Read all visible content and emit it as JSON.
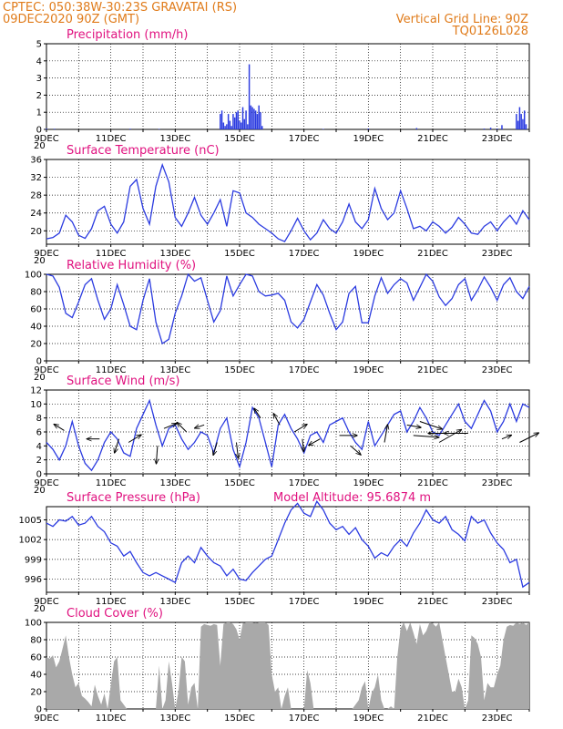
{
  "header": {
    "line1": "CPTEC:   050:38W-30:23S   GRAVATAI (RS)",
    "line2": "09DEC2020 90Z (GMT)",
    "right1": "Vertical Grid Line: 90Z",
    "right2": "TQ0126L028"
  },
  "colors": {
    "header": "#e07b1a",
    "title": "#e0117f",
    "line": "#2b3be0",
    "cloud": "#a9a9a9",
    "grid": "#000000"
  },
  "x_axis": {
    "ticks": [
      "9DEC",
      "11DEC",
      "13DEC",
      "15DEC",
      "17DEC",
      "19DEC",
      "21DEC",
      "23DEC"
    ],
    "day_start": 9,
    "day_end": 24,
    "tick_stub": "20"
  },
  "chart_data": [
    {
      "id": "precip",
      "type": "bar",
      "title": "Precipitation (mm/h)",
      "ylim": [
        0,
        5
      ],
      "yticks": [
        "0",
        "1",
        "2",
        "3",
        "4",
        "5"
      ],
      "units": "mm/h",
      "x": [
        9.0,
        9.25,
        11.6,
        12.5,
        14.4,
        14.45,
        14.5,
        14.55,
        14.6,
        14.65,
        14.7,
        14.75,
        14.8,
        14.85,
        14.9,
        14.95,
        15.0,
        15.05,
        15.1,
        15.15,
        15.2,
        15.25,
        15.3,
        15.35,
        15.4,
        15.45,
        15.5,
        15.55,
        15.6,
        15.65,
        15.7,
        17.6,
        19.0,
        20.5,
        22.6,
        22.8,
        23.0,
        23.15,
        23.6,
        23.65,
        23.7,
        23.75,
        23.8,
        23.85,
        23.9
      ],
      "values": [
        0.05,
        0.04,
        0.04,
        0.03,
        0.9,
        1.1,
        0.4,
        0.2,
        0.3,
        0.9,
        0.5,
        0.2,
        0.9,
        0.7,
        1.0,
        1.1,
        0.5,
        0.4,
        1.3,
        0.6,
        1.1,
        0.3,
        3.8,
        1.4,
        1.3,
        1.2,
        1.1,
        0.9,
        1.4,
        1.0,
        0.2,
        0.03,
        0.05,
        0.08,
        0.05,
        0.1,
        0.05,
        0.25,
        0.9,
        0.5,
        1.3,
        0.9,
        0.6,
        1.1,
        0.3
      ]
    },
    {
      "id": "temp",
      "type": "line",
      "title": "Surface Temperature (nC)",
      "ylim": [
        17,
        36
      ],
      "yticks": [
        "20",
        "24",
        "28",
        "32",
        "36"
      ],
      "x": [
        9.0,
        9.2,
        9.4,
        9.6,
        9.8,
        10.0,
        10.2,
        10.4,
        10.6,
        10.8,
        11.0,
        11.2,
        11.4,
        11.6,
        11.8,
        12.0,
        12.2,
        12.4,
        12.6,
        12.8,
        13.0,
        13.2,
        13.4,
        13.6,
        13.8,
        14.0,
        14.2,
        14.4,
        14.6,
        14.8,
        15.0,
        15.2,
        15.4,
        15.6,
        15.8,
        16.0,
        16.2,
        16.4,
        16.6,
        16.8,
        17.0,
        17.2,
        17.4,
        17.6,
        17.8,
        18.0,
        18.2,
        18.4,
        18.6,
        18.8,
        19.0,
        19.2,
        19.4,
        19.6,
        19.8,
        20.0,
        20.2,
        20.4,
        20.6,
        20.8,
        21.0,
        21.2,
        21.4,
        21.6,
        21.8,
        22.0,
        22.2,
        22.4,
        22.6,
        22.8,
        23.0,
        23.2,
        23.4,
        23.6,
        23.8,
        24.0
      ],
      "values": [
        18.2,
        18.5,
        19.5,
        23.5,
        22.0,
        19.0,
        18.3,
        20.5,
        24.5,
        25.5,
        21.5,
        19.5,
        22.0,
        30.0,
        31.5,
        25.0,
        21.5,
        30.0,
        34.8,
        31.0,
        23.0,
        21.0,
        24.0,
        27.5,
        23.5,
        21.5,
        24.0,
        27.0,
        21.0,
        29.0,
        28.5,
        24.0,
        23.0,
        21.5,
        20.5,
        19.5,
        18.2,
        17.6,
        20.0,
        22.8,
        20.0,
        18.0,
        19.5,
        22.5,
        20.5,
        19.5,
        22.0,
        26.0,
        22.0,
        20.5,
        22.5,
        29.5,
        25.0,
        22.5,
        24.0,
        29.0,
        25.0,
        20.5,
        21.0,
        20.0,
        22.0,
        21.0,
        19.5,
        20.8,
        23.0,
        21.5,
        19.5,
        19.2,
        21.0,
        22.0,
        20.0,
        22.0,
        23.5,
        21.5,
        24.5,
        22.5
      ]
    },
    {
      "id": "rh",
      "type": "line",
      "title": "Relative Humidity (%)",
      "ylim": [
        0,
        100
      ],
      "yticks": [
        "0",
        "20",
        "40",
        "60",
        "80",
        "100"
      ],
      "x": [
        9.0,
        9.2,
        9.4,
        9.6,
        9.8,
        10.0,
        10.2,
        10.4,
        10.6,
        10.8,
        11.0,
        11.2,
        11.4,
        11.6,
        11.8,
        12.0,
        12.2,
        12.4,
        12.6,
        12.8,
        13.0,
        13.2,
        13.4,
        13.6,
        13.8,
        14.0,
        14.2,
        14.4,
        14.6,
        14.8,
        15.0,
        15.2,
        15.4,
        15.6,
        15.8,
        16.0,
        16.2,
        16.4,
        16.6,
        16.8,
        17.0,
        17.2,
        17.4,
        17.6,
        17.8,
        18.0,
        18.2,
        18.4,
        18.6,
        18.8,
        19.0,
        19.2,
        19.4,
        19.6,
        19.8,
        20.0,
        20.2,
        20.4,
        20.6,
        20.8,
        21.0,
        21.2,
        21.4,
        21.6,
        21.8,
        22.0,
        22.2,
        22.4,
        22.6,
        22.8,
        23.0,
        23.2,
        23.4,
        23.6,
        23.8,
        24.0
      ],
      "values": [
        100,
        98,
        85,
        55,
        50,
        68,
        88,
        95,
        70,
        48,
        60,
        88,
        65,
        40,
        36,
        70,
        95,
        45,
        20,
        25,
        55,
        75,
        100,
        92,
        96,
        70,
        45,
        58,
        98,
        75,
        88,
        100,
        98,
        80,
        75,
        76,
        78,
        70,
        45,
        38,
        48,
        68,
        88,
        76,
        55,
        36,
        45,
        78,
        86,
        44,
        44,
        75,
        96,
        78,
        88,
        95,
        90,
        70,
        85,
        100,
        92,
        74,
        64,
        72,
        88,
        95,
        70,
        82,
        97,
        85,
        70,
        88,
        96,
        80,
        72,
        86
      ]
    },
    {
      "id": "wind",
      "type": "line",
      "title": "Surface Wind (m/s)",
      "ylim": [
        0,
        12
      ],
      "yticks": [
        "0",
        "2",
        "4",
        "6",
        "8",
        "10",
        "12"
      ],
      "x": [
        9.0,
        9.2,
        9.4,
        9.6,
        9.8,
        10.0,
        10.2,
        10.4,
        10.6,
        10.8,
        11.0,
        11.2,
        11.4,
        11.6,
        11.8,
        12.0,
        12.2,
        12.4,
        12.6,
        12.8,
        13.0,
        13.2,
        13.4,
        13.6,
        13.8,
        14.0,
        14.2,
        14.4,
        14.6,
        14.8,
        15.0,
        15.2,
        15.4,
        15.6,
        15.8,
        16.0,
        16.2,
        16.4,
        16.6,
        16.8,
        17.0,
        17.2,
        17.4,
        17.6,
        17.8,
        18.0,
        18.2,
        18.4,
        18.6,
        18.8,
        19.0,
        19.2,
        19.4,
        19.6,
        19.8,
        20.0,
        20.2,
        20.4,
        20.6,
        20.8,
        21.0,
        21.2,
        21.4,
        21.6,
        21.8,
        22.0,
        22.2,
        22.4,
        22.6,
        22.8,
        23.0,
        23.2,
        23.4,
        23.6,
        23.8,
        24.0
      ],
      "values": [
        4.5,
        3.5,
        2.0,
        4.0,
        7.5,
        4.0,
        1.5,
        0.5,
        2.0,
        4.5,
        6.0,
        5.0,
        3.0,
        2.5,
        6.5,
        8.5,
        10.5,
        7.0,
        4.0,
        6.5,
        7.0,
        5.0,
        3.5,
        4.5,
        6.0,
        5.5,
        3.0,
        6.5,
        8.0,
        3.5,
        1.0,
        4.5,
        9.5,
        8.0,
        4.5,
        1.0,
        7.0,
        8.5,
        6.5,
        5.0,
        3.0,
        5.5,
        6.0,
        4.5,
        7.0,
        7.5,
        8.0,
        6.0,
        4.5,
        3.5,
        7.5,
        4.0,
        5.5,
        7.0,
        8.5,
        9.0,
        6.0,
        7.5,
        9.5,
        8.0,
        6.0,
        5.5,
        7.0,
        8.5,
        10.0,
        7.5,
        6.5,
        8.5,
        10.5,
        9.0,
        6.0,
        7.5,
        10.0,
        7.5,
        10.0,
        9.5
      ],
      "vectors": [
        {
          "day": 9.55,
          "speed": 6.2,
          "u": -1.6,
          "v": 1.0
        },
        {
          "day": 10.65,
          "speed": 5.0,
          "u": -2.0,
          "v": 0.0
        },
        {
          "day": 11.25,
          "speed": 5.0,
          "u": -0.7,
          "v": -2.2
        },
        {
          "day": 11.55,
          "speed": 4.5,
          "u": 2.0,
          "v": 1.2
        },
        {
          "day": 12.45,
          "speed": 4.0,
          "u": -0.2,
          "v": -2.8
        },
        {
          "day": 12.65,
          "speed": 6.5,
          "u": 2.0,
          "v": 0.8
        },
        {
          "day": 13.35,
          "speed": 6.0,
          "u": -1.5,
          "v": 1.5
        },
        {
          "day": 13.9,
          "speed": 7.0,
          "u": -1.5,
          "v": -0.5
        },
        {
          "day": 14.3,
          "speed": 4.5,
          "u": -0.6,
          "v": -2.0
        },
        {
          "day": 14.9,
          "speed": 4.5,
          "u": 0.3,
          "v": -2.5
        },
        {
          "day": 15.65,
          "speed": 8.0,
          "u": -1.0,
          "v": 1.5
        },
        {
          "day": 16.25,
          "speed": 7.0,
          "u": -1.0,
          "v": 1.8
        },
        {
          "day": 16.7,
          "speed": 6.0,
          "u": 2.0,
          "v": 1.2
        },
        {
          "day": 16.95,
          "speed": 5.0,
          "u": 0.2,
          "v": -2.0
        },
        {
          "day": 17.5,
          "speed": 5.0,
          "u": -1.8,
          "v": -1.0
        },
        {
          "day": 18.1,
          "speed": 5.5,
          "u": 2.8,
          "v": 0.0
        },
        {
          "day": 18.45,
          "speed": 4.0,
          "u": 1.6,
          "v": -1.4
        },
        {
          "day": 19.5,
          "speed": 4.5,
          "u": 0.5,
          "v": 2.8
        },
        {
          "day": 20.2,
          "speed": 7.0,
          "u": 2.2,
          "v": -0.4
        },
        {
          "day": 20.4,
          "speed": 5.5,
          "u": 4.0,
          "v": -0.3
        },
        {
          "day": 20.6,
          "speed": 7.5,
          "u": 3.5,
          "v": -1.2
        },
        {
          "day": 21.2,
          "speed": 4.5,
          "u": 3.5,
          "v": 2.0
        },
        {
          "day": 21.55,
          "speed": 5.8,
          "u": -3.5,
          "v": 0.0
        },
        {
          "day": 22.1,
          "speed": 5.8,
          "u": -3.8,
          "v": 0.0
        },
        {
          "day": 23.15,
          "speed": 5.0,
          "u": 1.5,
          "v": 0.6
        },
        {
          "day": 23.7,
          "speed": 4.5,
          "u": 3.0,
          "v": 1.5
        }
      ]
    },
    {
      "id": "pres",
      "type": "line",
      "title": "Surface Pressure (hPa)",
      "annotation": "Model Altitude: 95.6874 m",
      "ylim": [
        994,
        1007
      ],
      "yticks": [
        "996",
        "999",
        "1002",
        "1005"
      ],
      "x": [
        9.0,
        9.2,
        9.4,
        9.6,
        9.8,
        10.0,
        10.2,
        10.4,
        10.6,
        10.8,
        11.0,
        11.2,
        11.4,
        11.6,
        11.8,
        12.0,
        12.2,
        12.4,
        12.6,
        12.8,
        13.0,
        13.2,
        13.4,
        13.6,
        13.8,
        14.0,
        14.2,
        14.4,
        14.6,
        14.8,
        15.0,
        15.2,
        15.4,
        15.6,
        15.8,
        16.0,
        16.2,
        16.4,
        16.6,
        16.8,
        17.0,
        17.2,
        17.4,
        17.6,
        17.8,
        18.0,
        18.2,
        18.4,
        18.6,
        18.8,
        19.0,
        19.2,
        19.4,
        19.6,
        19.8,
        20.0,
        20.2,
        20.4,
        20.6,
        20.8,
        21.0,
        21.2,
        21.4,
        21.6,
        21.8,
        22.0,
        22.2,
        22.4,
        22.6,
        22.8,
        23.0,
        23.2,
        23.4,
        23.6,
        23.8,
        24.0
      ],
      "values": [
        1004.5,
        1004.0,
        1005.0,
        1004.8,
        1005.5,
        1004.2,
        1004.5,
        1005.5,
        1004.0,
        1003.2,
        1001.5,
        1001.0,
        999.5,
        1000.2,
        998.5,
        997.0,
        996.5,
        997.0,
        996.5,
        996.0,
        995.5,
        998.5,
        999.5,
        998.5,
        1000.8,
        999.5,
        998.5,
        998.0,
        996.5,
        997.5,
        996.0,
        995.8,
        997.0,
        998.0,
        999.0,
        999.5,
        1002.0,
        1004.5,
        1006.5,
        1007.5,
        1006.0,
        1005.5,
        1007.8,
        1006.5,
        1004.5,
        1003.5,
        1004.0,
        1002.8,
        1003.8,
        1002.0,
        1001.0,
        999.2,
        1000.0,
        999.5,
        1001.0,
        1002.0,
        1001.0,
        1003.0,
        1004.5,
        1006.5,
        1005.0,
        1004.5,
        1005.5,
        1003.5,
        1002.8,
        1001.8,
        1005.5,
        1004.5,
        1005.0,
        1003.0,
        1001.5,
        1000.5,
        998.5,
        999.0,
        994.8,
        995.5
      ]
    },
    {
      "id": "cloud",
      "type": "area",
      "title": "Cloud Cover (%)",
      "ylim": [
        0,
        100
      ],
      "yticks": [
        "0",
        "20",
        "40",
        "60",
        "80",
        "100"
      ],
      "x": [
        9.0,
        9.1,
        9.2,
        9.3,
        9.4,
        9.5,
        9.6,
        9.7,
        9.8,
        9.9,
        10.0,
        10.1,
        10.2,
        10.3,
        10.4,
        10.5,
        10.6,
        10.7,
        10.8,
        10.9,
        11.0,
        11.1,
        11.2,
        11.3,
        11.4,
        11.5,
        11.6,
        11.7,
        11.8,
        11.9,
        12.0,
        12.1,
        12.2,
        12.3,
        12.4,
        12.5,
        12.6,
        12.7,
        12.8,
        12.9,
        13.0,
        13.1,
        13.2,
        13.3,
        13.4,
        13.5,
        13.6,
        13.7,
        13.8,
        13.9,
        14.0,
        14.1,
        14.2,
        14.3,
        14.4,
        14.5,
        14.6,
        14.7,
        14.8,
        14.9,
        15.0,
        15.1,
        15.2,
        15.3,
        15.4,
        15.5,
        15.6,
        15.7,
        15.8,
        15.9,
        16.0,
        16.1,
        16.2,
        16.3,
        16.4,
        16.5,
        16.6,
        16.7,
        16.8,
        16.9,
        17.0,
        17.1,
        17.2,
        17.3,
        17.4,
        17.5,
        17.6,
        17.7,
        17.8,
        17.9,
        18.0,
        18.1,
        18.2,
        18.3,
        18.4,
        18.5,
        18.6,
        18.7,
        18.8,
        18.9,
        19.0,
        19.1,
        19.2,
        19.3,
        19.4,
        19.5,
        19.6,
        19.7,
        19.8,
        19.9,
        20.0,
        20.1,
        20.2,
        20.3,
        20.4,
        20.5,
        20.6,
        20.7,
        20.8,
        20.9,
        21.0,
        21.1,
        21.2,
        21.3,
        21.4,
        21.5,
        21.6,
        21.7,
        21.8,
        21.9,
        22.0,
        22.1,
        22.2,
        22.3,
        22.4,
        22.5,
        22.6,
        22.7,
        22.8,
        22.9,
        23.0,
        23.1,
        23.2,
        23.3,
        23.4,
        23.5,
        23.6,
        23.7,
        23.8,
        23.9,
        24.0
      ],
      "values": [
        60,
        58,
        62,
        48,
        55,
        70,
        85,
        60,
        40,
        25,
        30,
        15,
        12,
        8,
        3,
        28,
        15,
        5,
        18,
        0,
        28,
        55,
        60,
        10,
        5,
        0,
        0,
        0,
        0,
        0,
        0,
        0,
        0,
        0,
        0,
        50,
        0,
        10,
        55,
        30,
        0,
        20,
        60,
        55,
        5,
        25,
        30,
        0,
        95,
        98,
        97,
        96,
        98,
        97,
        50,
        98,
        100,
        100,
        98,
        92,
        80,
        99,
        100,
        100,
        100,
        99,
        100,
        100,
        100,
        97,
        40,
        20,
        25,
        0,
        15,
        25,
        0,
        0,
        0,
        0,
        0,
        45,
        30,
        0,
        0,
        0,
        0,
        0,
        0,
        0,
        0,
        0,
        0,
        0,
        0,
        0,
        5,
        10,
        25,
        32,
        0,
        18,
        25,
        40,
        10,
        0,
        0,
        3,
        0,
        60,
        93,
        100,
        90,
        100,
        88,
        75,
        98,
        85,
        90,
        100,
        99,
        95,
        100,
        80,
        60,
        40,
        20,
        20,
        35,
        25,
        0,
        10,
        85,
        82,
        75,
        60,
        10,
        30,
        25,
        25,
        40,
        50,
        80,
        95,
        97,
        96,
        100,
        98,
        100,
        97,
        100
      ]
    }
  ]
}
